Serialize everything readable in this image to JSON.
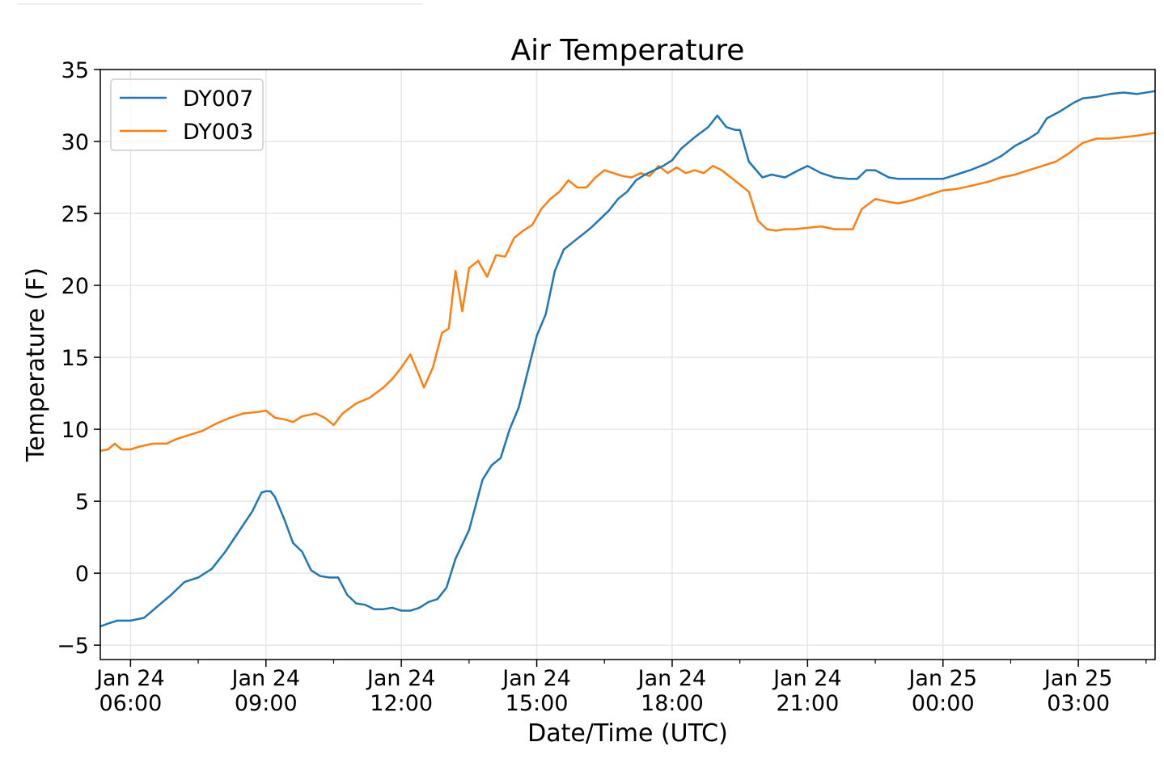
{
  "chart_data": {
    "type": "line",
    "title": "Air Temperature",
    "xlabel": "Date/Time (UTC)",
    "ylabel": "Temperature (F)",
    "ylim": [
      -6,
      35
    ],
    "xlim": [
      5.33,
      28.7
    ],
    "x_unit": "hours since Jan 24 00:00 UTC",
    "y_ticks": [
      -5,
      0,
      5,
      10,
      15,
      20,
      25,
      30,
      35
    ],
    "y_tick_labels": [
      "−5",
      "0",
      "5",
      "10",
      "15",
      "20",
      "25",
      "30",
      "35"
    ],
    "x_ticks": [
      {
        "x": 6,
        "line1": "Jan 24",
        "line2": "06:00"
      },
      {
        "x": 9,
        "line1": "Jan 24",
        "line2": "09:00"
      },
      {
        "x": 12,
        "line1": "Jan 24",
        "line2": "12:00"
      },
      {
        "x": 15,
        "line1": "Jan 24",
        "line2": "15:00"
      },
      {
        "x": 18,
        "line1": "Jan 24",
        "line2": "18:00"
      },
      {
        "x": 21,
        "line1": "Jan 24",
        "line2": "21:00"
      },
      {
        "x": 24,
        "line1": "Jan 25",
        "line2": "00:00"
      },
      {
        "x": 27,
        "line1": "Jan 25",
        "line2": "03:00"
      }
    ],
    "minor_x_ticks": [
      7.5,
      10.5,
      13.5,
      16.5,
      19.5,
      22.5,
      25.5,
      28.5
    ],
    "grid": true,
    "legend_position": "top-left",
    "series": [
      {
        "name": "DY007",
        "color": "#1f77b4",
        "points": [
          [
            5.33,
            -3.7
          ],
          [
            5.5,
            -3.5
          ],
          [
            5.7,
            -3.3
          ],
          [
            6.0,
            -3.3
          ],
          [
            6.3,
            -3.1
          ],
          [
            6.6,
            -2.3
          ],
          [
            6.9,
            -1.5
          ],
          [
            7.2,
            -0.6
          ],
          [
            7.5,
            -0.3
          ],
          [
            7.8,
            0.3
          ],
          [
            8.1,
            1.5
          ],
          [
            8.4,
            2.9
          ],
          [
            8.7,
            4.3
          ],
          [
            8.9,
            5.6
          ],
          [
            9.0,
            5.7
          ],
          [
            9.1,
            5.7
          ],
          [
            9.2,
            5.3
          ],
          [
            9.4,
            3.8
          ],
          [
            9.6,
            2.1
          ],
          [
            9.8,
            1.5
          ],
          [
            10.0,
            0.2
          ],
          [
            10.2,
            -0.2
          ],
          [
            10.4,
            -0.3
          ],
          [
            10.6,
            -0.3
          ],
          [
            10.8,
            -1.5
          ],
          [
            11.0,
            -2.1
          ],
          [
            11.2,
            -2.2
          ],
          [
            11.4,
            -2.5
          ],
          [
            11.6,
            -2.5
          ],
          [
            11.8,
            -2.4
          ],
          [
            12.0,
            -2.6
          ],
          [
            12.2,
            -2.6
          ],
          [
            12.4,
            -2.4
          ],
          [
            12.6,
            -2.0
          ],
          [
            12.8,
            -1.8
          ],
          [
            13.0,
            -1.0
          ],
          [
            13.2,
            1.0
          ],
          [
            13.5,
            3.0
          ],
          [
            13.8,
            6.5
          ],
          [
            14.0,
            7.5
          ],
          [
            14.2,
            8.0
          ],
          [
            14.4,
            10.0
          ],
          [
            14.6,
            11.5
          ],
          [
            14.8,
            14.0
          ],
          [
            15.0,
            16.5
          ],
          [
            15.2,
            18.0
          ],
          [
            15.4,
            21.0
          ],
          [
            15.6,
            22.5
          ],
          [
            15.8,
            23.0
          ],
          [
            16.0,
            23.5
          ],
          [
            16.2,
            24.0
          ],
          [
            16.4,
            24.6
          ],
          [
            16.6,
            25.2
          ],
          [
            16.8,
            26.0
          ],
          [
            17.0,
            26.5
          ],
          [
            17.2,
            27.3
          ],
          [
            17.4,
            27.7
          ],
          [
            17.6,
            28.0
          ],
          [
            17.8,
            28.3
          ],
          [
            18.0,
            28.7
          ],
          [
            18.2,
            29.5
          ],
          [
            18.5,
            30.3
          ],
          [
            18.8,
            31.0
          ],
          [
            19.0,
            31.8
          ],
          [
            19.2,
            31.0
          ],
          [
            19.4,
            30.8
          ],
          [
            19.5,
            30.8
          ],
          [
            19.7,
            28.6
          ],
          [
            20.0,
            27.5
          ],
          [
            20.2,
            27.7
          ],
          [
            20.5,
            27.5
          ],
          [
            20.8,
            28.0
          ],
          [
            21.0,
            28.3
          ],
          [
            21.3,
            27.8
          ],
          [
            21.6,
            27.5
          ],
          [
            21.9,
            27.4
          ],
          [
            22.1,
            27.4
          ],
          [
            22.3,
            28.0
          ],
          [
            22.5,
            28.0
          ],
          [
            22.8,
            27.5
          ],
          [
            23.0,
            27.4
          ],
          [
            23.5,
            27.4
          ],
          [
            24.0,
            27.4
          ],
          [
            24.3,
            27.7
          ],
          [
            24.6,
            28.0
          ],
          [
            25.0,
            28.5
          ],
          [
            25.3,
            29.0
          ],
          [
            25.6,
            29.7
          ],
          [
            25.9,
            30.2
          ],
          [
            26.1,
            30.6
          ],
          [
            26.3,
            31.6
          ],
          [
            26.6,
            32.1
          ],
          [
            26.9,
            32.7
          ],
          [
            27.1,
            33.0
          ],
          [
            27.4,
            33.1
          ],
          [
            27.7,
            33.3
          ],
          [
            28.0,
            33.4
          ],
          [
            28.3,
            33.3
          ],
          [
            28.7,
            33.5
          ]
        ]
      },
      {
        "name": "DY003",
        "color": "#ff7f0e",
        "points": [
          [
            5.33,
            8.5
          ],
          [
            5.5,
            8.6
          ],
          [
            5.65,
            9.0
          ],
          [
            5.8,
            8.6
          ],
          [
            6.0,
            8.6
          ],
          [
            6.2,
            8.8
          ],
          [
            6.5,
            9.0
          ],
          [
            6.8,
            9.0
          ],
          [
            7.0,
            9.3
          ],
          [
            7.3,
            9.6
          ],
          [
            7.6,
            9.9
          ],
          [
            7.9,
            10.4
          ],
          [
            8.2,
            10.8
          ],
          [
            8.5,
            11.1
          ],
          [
            8.8,
            11.2
          ],
          [
            9.0,
            11.3
          ],
          [
            9.2,
            10.8
          ],
          [
            9.4,
            10.7
          ],
          [
            9.6,
            10.5
          ],
          [
            9.8,
            10.9
          ],
          [
            10.1,
            11.1
          ],
          [
            10.3,
            10.8
          ],
          [
            10.5,
            10.3
          ],
          [
            10.7,
            11.1
          ],
          [
            11.0,
            11.8
          ],
          [
            11.3,
            12.2
          ],
          [
            11.6,
            12.9
          ],
          [
            11.8,
            13.5
          ],
          [
            12.0,
            14.3
          ],
          [
            12.2,
            15.2
          ],
          [
            12.4,
            13.7
          ],
          [
            12.5,
            12.9
          ],
          [
            12.7,
            14.3
          ],
          [
            12.9,
            16.7
          ],
          [
            13.05,
            17.0
          ],
          [
            13.2,
            21.0
          ],
          [
            13.35,
            18.2
          ],
          [
            13.5,
            21.2
          ],
          [
            13.7,
            21.7
          ],
          [
            13.9,
            20.6
          ],
          [
            14.1,
            22.1
          ],
          [
            14.3,
            22.0
          ],
          [
            14.5,
            23.3
          ],
          [
            14.7,
            23.8
          ],
          [
            14.9,
            24.2
          ],
          [
            15.1,
            25.3
          ],
          [
            15.3,
            26.0
          ],
          [
            15.5,
            26.5
          ],
          [
            15.7,
            27.3
          ],
          [
            15.9,
            26.8
          ],
          [
            16.1,
            26.8
          ],
          [
            16.3,
            27.5
          ],
          [
            16.5,
            28.0
          ],
          [
            16.7,
            27.8
          ],
          [
            16.9,
            27.6
          ],
          [
            17.1,
            27.5
          ],
          [
            17.3,
            27.8
          ],
          [
            17.5,
            27.6
          ],
          [
            17.7,
            28.3
          ],
          [
            17.9,
            27.8
          ],
          [
            18.1,
            28.2
          ],
          [
            18.3,
            27.8
          ],
          [
            18.5,
            28.0
          ],
          [
            18.7,
            27.8
          ],
          [
            18.9,
            28.3
          ],
          [
            19.1,
            28.0
          ],
          [
            19.3,
            27.5
          ],
          [
            19.5,
            27.0
          ],
          [
            19.7,
            26.5
          ],
          [
            19.9,
            24.5
          ],
          [
            20.1,
            23.9
          ],
          [
            20.3,
            23.8
          ],
          [
            20.5,
            23.9
          ],
          [
            20.7,
            23.9
          ],
          [
            21.0,
            24.0
          ],
          [
            21.3,
            24.1
          ],
          [
            21.6,
            23.9
          ],
          [
            22.0,
            23.9
          ],
          [
            22.2,
            25.3
          ],
          [
            22.5,
            26.0
          ],
          [
            22.8,
            25.8
          ],
          [
            23.0,
            25.7
          ],
          [
            23.3,
            25.9
          ],
          [
            23.6,
            26.2
          ],
          [
            24.0,
            26.6
          ],
          [
            24.3,
            26.7
          ],
          [
            24.6,
            26.9
          ],
          [
            25.0,
            27.2
          ],
          [
            25.3,
            27.5
          ],
          [
            25.6,
            27.7
          ],
          [
            25.9,
            28.0
          ],
          [
            26.2,
            28.3
          ],
          [
            26.5,
            28.6
          ],
          [
            26.8,
            29.2
          ],
          [
            27.1,
            29.9
          ],
          [
            27.4,
            30.2
          ],
          [
            27.7,
            30.2
          ],
          [
            28.0,
            30.3
          ],
          [
            28.3,
            30.4
          ],
          [
            28.7,
            30.6
          ]
        ]
      }
    ]
  }
}
